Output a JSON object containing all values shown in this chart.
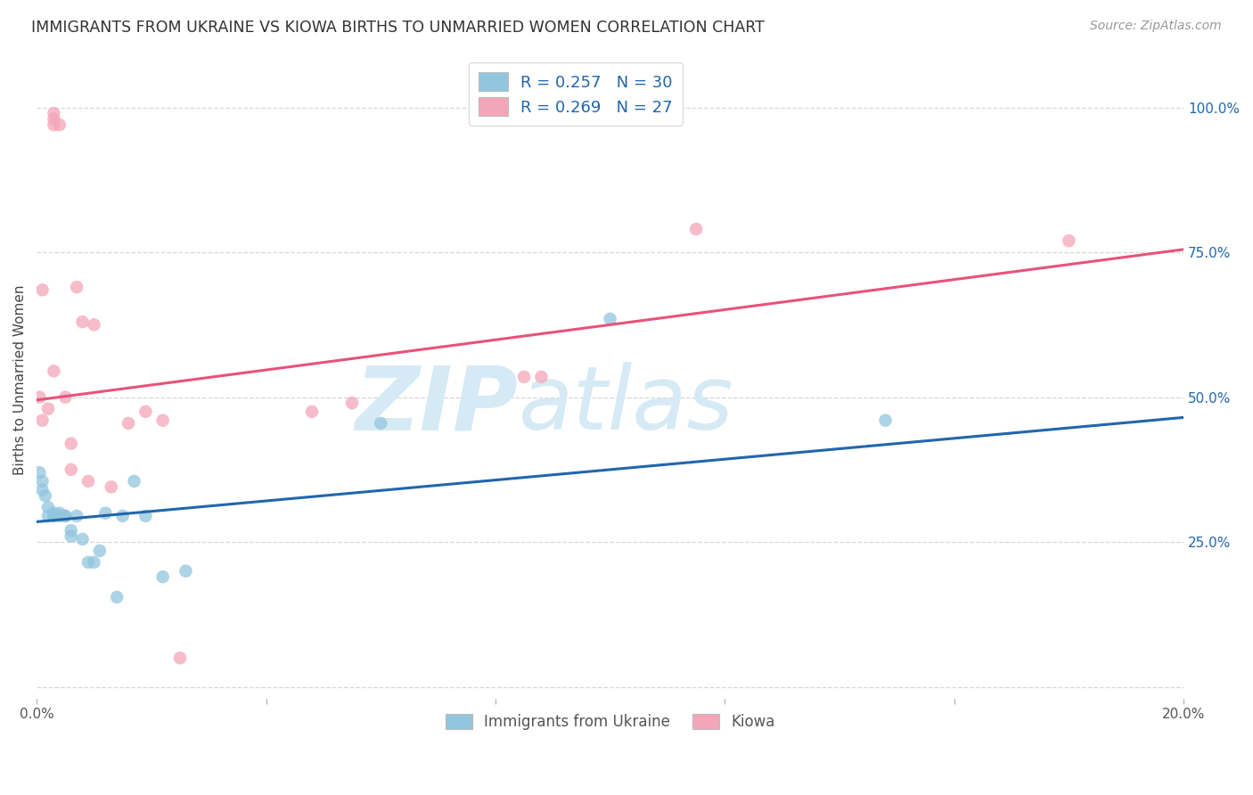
{
  "title": "IMMIGRANTS FROM UKRAINE VS KIOWA BIRTHS TO UNMARRIED WOMEN CORRELATION CHART",
  "source": "Source: ZipAtlas.com",
  "ylabel": "Births to Unmarried Women",
  "legend_text_blue": "R = 0.257   N = 30",
  "legend_text_pink": "R = 0.269   N = 27",
  "legend_xlabel_blue": "Immigrants from Ukraine",
  "legend_xlabel_pink": "Kiowa",
  "blue_color": "#92c5de",
  "pink_color": "#f4a6b8",
  "blue_line_color": "#2166ac",
  "pink_line_color": "#e8527a",
  "watermark_zip": "ZIP",
  "watermark_atlas": "atlas",
  "watermark_color": "#d6eaf5",
  "xlim": [
    0.0,
    0.2
  ],
  "ylim": [
    -0.02,
    1.08
  ],
  "xtick_positions": [
    0.0,
    0.04,
    0.08,
    0.12,
    0.16,
    0.2
  ],
  "xtick_labels": [
    "0.0%",
    "",
    "",
    "",
    "",
    "20.0%"
  ],
  "ytick_positions": [
    0.0,
    0.25,
    0.5,
    0.75,
    1.0
  ],
  "ytick_labels": [
    "",
    "25.0%",
    "50.0%",
    "75.0%",
    "100.0%"
  ],
  "blue_scatter_x": [
    0.0005,
    0.001,
    0.001,
    0.0015,
    0.002,
    0.002,
    0.003,
    0.003,
    0.003,
    0.004,
    0.004,
    0.005,
    0.005,
    0.006,
    0.006,
    0.007,
    0.008,
    0.009,
    0.01,
    0.011,
    0.012,
    0.014,
    0.015,
    0.017,
    0.019,
    0.022,
    0.026,
    0.06,
    0.1,
    0.148
  ],
  "blue_scatter_y": [
    0.37,
    0.355,
    0.34,
    0.33,
    0.31,
    0.295,
    0.295,
    0.295,
    0.3,
    0.295,
    0.3,
    0.295,
    0.295,
    0.27,
    0.26,
    0.295,
    0.255,
    0.215,
    0.215,
    0.235,
    0.3,
    0.155,
    0.295,
    0.355,
    0.295,
    0.19,
    0.2,
    0.455,
    0.635,
    0.46
  ],
  "pink_scatter_x": [
    0.0005,
    0.001,
    0.002,
    0.003,
    0.003,
    0.003,
    0.004,
    0.005,
    0.006,
    0.006,
    0.007,
    0.008,
    0.009,
    0.01,
    0.013,
    0.016,
    0.019,
    0.022,
    0.025,
    0.048,
    0.055,
    0.085,
    0.088,
    0.115,
    0.18,
    0.001,
    0.003
  ],
  "pink_scatter_y": [
    0.5,
    0.46,
    0.48,
    0.99,
    0.98,
    0.97,
    0.97,
    0.5,
    0.42,
    0.375,
    0.69,
    0.63,
    0.355,
    0.625,
    0.345,
    0.455,
    0.475,
    0.46,
    0.05,
    0.475,
    0.49,
    0.535,
    0.535,
    0.79,
    0.77,
    0.685,
    0.545
  ],
  "blue_trend_x": [
    0.0,
    0.2
  ],
  "blue_trend_y": [
    0.285,
    0.465
  ],
  "pink_trend_x": [
    0.0,
    0.2
  ],
  "pink_trend_y": [
    0.495,
    0.755
  ],
  "grid_color": "#d3d3d3",
  "background_color": "#ffffff"
}
